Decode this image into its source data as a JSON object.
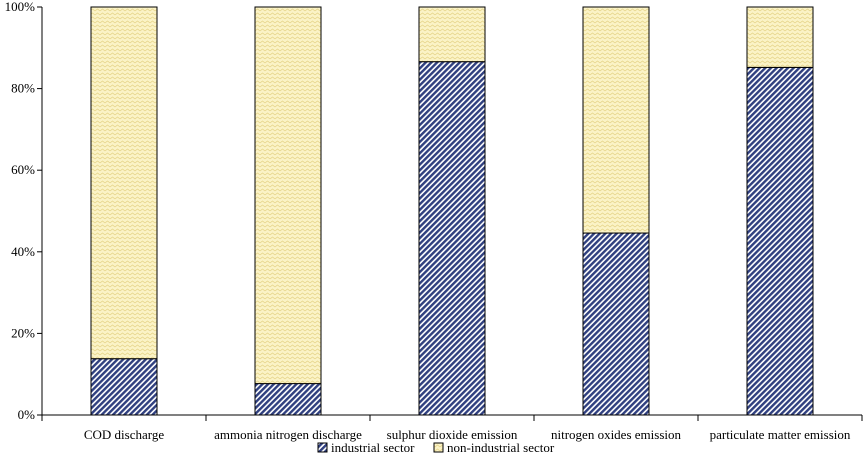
{
  "chart_data": {
    "type": "bar",
    "stacked": true,
    "percent": true,
    "categories": [
      "COD discharge",
      "ammonia nitrogen discharge",
      "sulphur dioxide emission",
      "nitrogen oxides emission",
      "particulate matter emission"
    ],
    "series": [
      {
        "name": "industrial sector",
        "values": [
          13.8,
          7.7,
          86.6,
          44.6,
          85.2
        ],
        "color": "#2f3f7f"
      },
      {
        "name": "non-industrial sector",
        "values": [
          86.2,
          92.3,
          13.4,
          55.4,
          14.8
        ],
        "color": "#f6e9a4"
      }
    ],
    "ylim": [
      0,
      100
    ],
    "yticks": [
      "0%",
      "20%",
      "40%",
      "60%",
      "80%",
      "100%"
    ],
    "grid": false,
    "legend_position": "bottom"
  }
}
